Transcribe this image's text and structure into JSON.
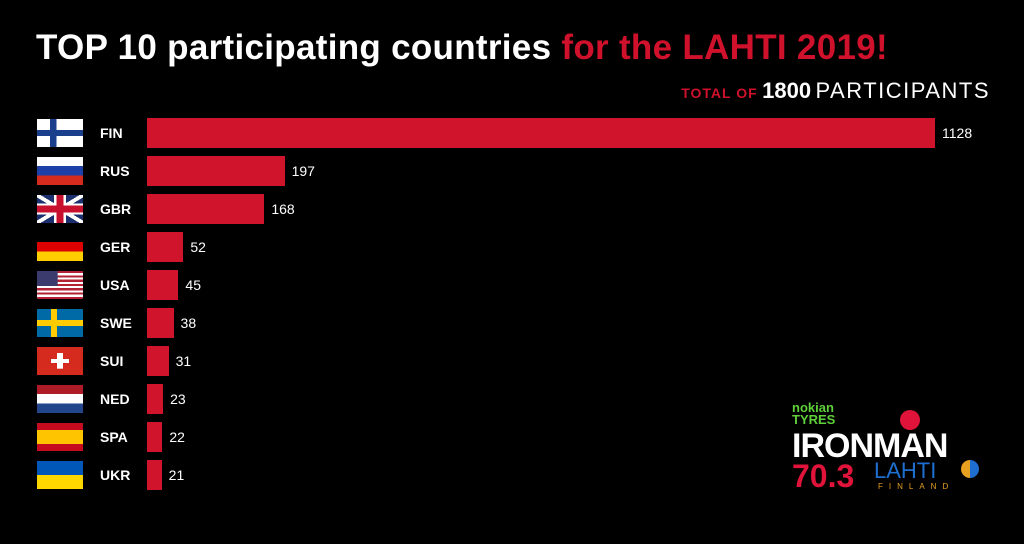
{
  "title": {
    "part1": "TOP 10 participating countries",
    "part2": "for the LAHTI 2019!"
  },
  "subtitle": {
    "prefix": "TOTAL OF",
    "count": "1800",
    "suffix": "PARTICIPANTS"
  },
  "logo": {
    "sponsor_line1": "nokian",
    "sponsor_line2": "TYRES",
    "brand": "IRONMAN",
    "race": "70.3",
    "city": "LAHTI",
    "country": "FINLAND"
  },
  "colors": {
    "bar": "#d0142c",
    "accent": "#d0112b"
  },
  "chart_data": {
    "type": "bar",
    "orientation": "horizontal",
    "title": "TOP 10 participating countries for the LAHTI 2019!",
    "categories": [
      "FIN",
      "RUS",
      "GBR",
      "GER",
      "USA",
      "SWE",
      "SUI",
      "NED",
      "SPA",
      "UKR"
    ],
    "values": [
      1128,
      197,
      168,
      52,
      45,
      38,
      31,
      23,
      22,
      21
    ],
    "xlim": [
      0,
      1128
    ]
  }
}
